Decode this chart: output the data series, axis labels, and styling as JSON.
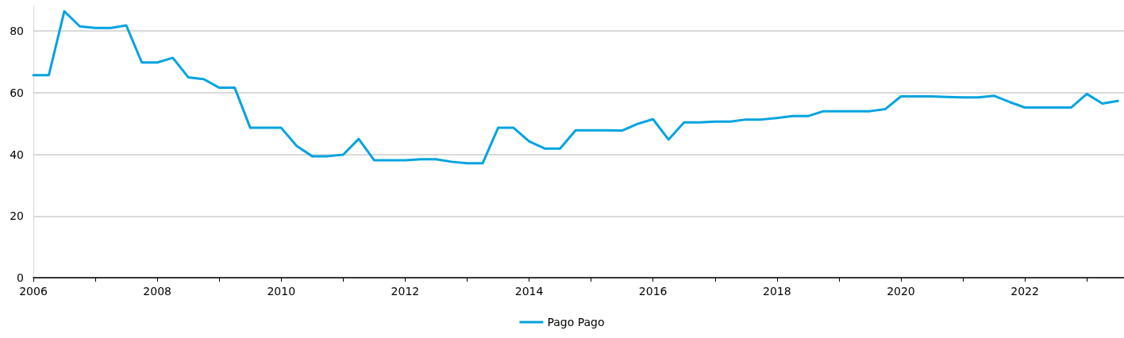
{
  "chart_data": {
    "type": "line",
    "x": [
      2006,
      2006.25,
      2006.5,
      2006.75,
      2007,
      2007.25,
      2007.5,
      2007.75,
      2008,
      2008.25,
      2008.5,
      2008.75,
      2009,
      2009.25,
      2009.5,
      2009.75,
      2010,
      2010.25,
      2010.5,
      2010.75,
      2011,
      2011.25,
      2011.5,
      2011.75,
      2012,
      2012.25,
      2012.5,
      2012.75,
      2013,
      2013.25,
      2013.5,
      2013.75,
      2014,
      2014.25,
      2014.5,
      2014.75,
      2015,
      2015.25,
      2015.5,
      2015.75,
      2016,
      2016.25,
      2016.5,
      2016.75,
      2017,
      2017.25,
      2017.5,
      2017.75,
      2018,
      2018.25,
      2018.5,
      2018.75,
      2019,
      2019.25,
      2019.5,
      2019.75,
      2020,
      2020.25,
      2020.5,
      2020.75,
      2021,
      2021.25,
      2021.5,
      2021.75,
      2022,
      2022.25,
      2022.5,
      2022.75,
      2023,
      2023.25,
      2023.5
    ],
    "series": [
      {
        "name": "Pago Pago",
        "color": "#00a3e0",
        "values": [
          65.7,
          65.7,
          86.4,
          81.5,
          81,
          81,
          81.8,
          69.8,
          69.8,
          71.3,
          65,
          64.4,
          61.6,
          61.6,
          48.6,
          48.6,
          48.6,
          42.7,
          39.4,
          39.4,
          39.9,
          45,
          38.1,
          38.1,
          38.1,
          38.4,
          38.4,
          37.6,
          37.1,
          37.1,
          48.6,
          48.6,
          44.2,
          41.9,
          41.9,
          47.8,
          47.8,
          47.8,
          47.7,
          49.9,
          51.4,
          44.8,
          50.4,
          50.4,
          50.6,
          50.6,
          51.3,
          51.3,
          51.8,
          52.4,
          52.4,
          54,
          54,
          54,
          54,
          54.7,
          58.8,
          58.8,
          58.8,
          58.6,
          58.5,
          58.5,
          59,
          57,
          55.2,
          55.2,
          55.2,
          55.2,
          59.6,
          56.5,
          57.3
        ]
      }
    ],
    "xlim": [
      2006,
      2023.6
    ],
    "xticks": [
      2006,
      {
        "value": 2007,
        "label": null
      },
      2008,
      {
        "value": 2009,
        "label": null
      },
      2010,
      {
        "value": 2011,
        "label": null
      },
      2012,
      {
        "value": 2013,
        "label": null
      },
      2014,
      {
        "value": 2015,
        "label": null
      },
      2016,
      {
        "value": 2017,
        "label": null
      },
      2018,
      {
        "value": 2019,
        "label": null
      },
      2020,
      {
        "value": 2021,
        "label": null
      },
      2022,
      {
        "value": 2023,
        "label": null
      }
    ],
    "ylim": [
      0,
      88
    ],
    "yticks": [
      0,
      20,
      40,
      60,
      80
    ],
    "grid": "y",
    "legend": "bottom",
    "marker": "none",
    "line_style": "solid"
  }
}
